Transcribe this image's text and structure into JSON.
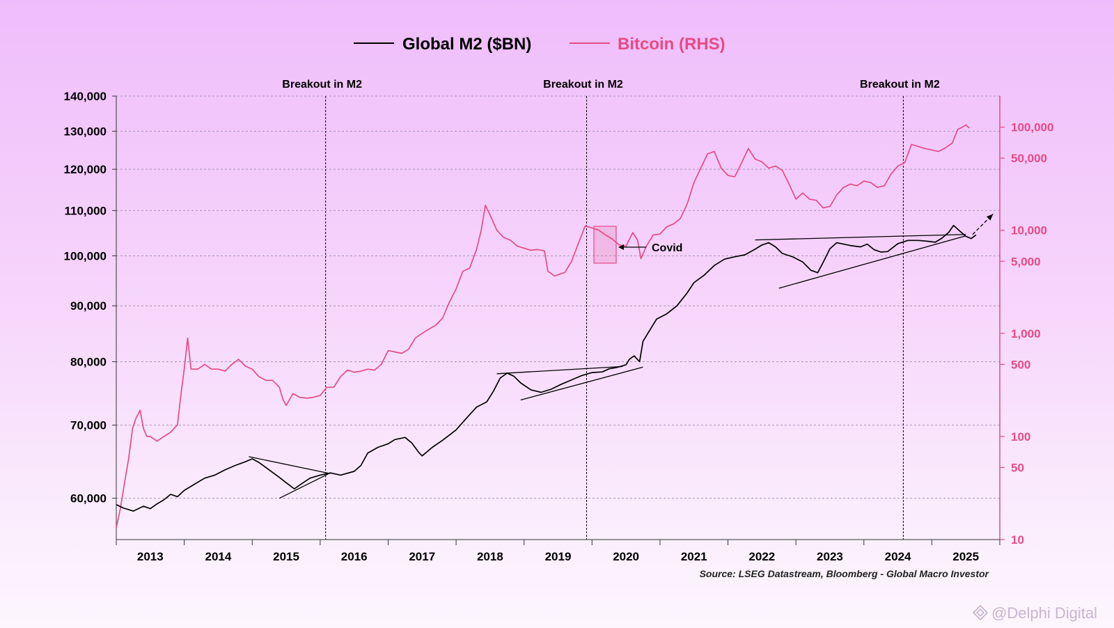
{
  "chart_data": {
    "type": "line",
    "legend": [
      {
        "name": "Global M2 ($BN)",
        "color": "#000000"
      },
      {
        "name": "Bitcoin (RHS)",
        "color": "#e64b85"
      }
    ],
    "x_range": [
      2012.5,
      2025.5
    ],
    "x_ticks": [
      "2013",
      "2014",
      "2015",
      "2016",
      "2017",
      "2018",
      "2019",
      "2020",
      "2021",
      "2022",
      "2023",
      "2024",
      "2025"
    ],
    "y_left": {
      "scale": "log",
      "range": [
        55000,
        140000
      ],
      "ticks": [
        60000,
        70000,
        80000,
        90000,
        100000,
        110000,
        120000,
        130000,
        140000
      ],
      "tick_labels": [
        "60,000",
        "70,000",
        "80,000",
        "90,000",
        "100,000",
        "110,000",
        "120,000",
        "130,000",
        "140,000"
      ]
    },
    "y_right": {
      "scale": "log",
      "range": [
        10,
        200000
      ],
      "ticks": [
        10,
        50,
        100,
        500,
        1000,
        5000,
        10000,
        50000,
        100000
      ],
      "tick_labels": [
        "10",
        "50",
        "100",
        "500",
        "1,000",
        "5,000",
        "10,000",
        "50,000",
        "100,000"
      ]
    },
    "breakout_lines": [
      {
        "x": 2015.58,
        "label": "Breakout in M2"
      },
      {
        "x": 2019.42,
        "label": "Breakout in M2"
      },
      {
        "x": 2024.08,
        "label": "Breakout in M2"
      }
    ],
    "annotation": {
      "label": "Covid",
      "x": 2020.2
    },
    "source": "Source: LSEG Datastream, Bloomberg - Global Macro Investor",
    "watermark": "@Delphi Digital",
    "series": [
      {
        "name": "Global M2 ($BN)",
        "axis": "left",
        "color": "#000000",
        "points": [
          [
            2012.5,
            59200
          ],
          [
            2012.6,
            58800
          ],
          [
            2012.75,
            58400
          ],
          [
            2012.9,
            59000
          ],
          [
            2013.0,
            58700
          ],
          [
            2013.1,
            59300
          ],
          [
            2013.2,
            59800
          ],
          [
            2013.3,
            60500
          ],
          [
            2013.4,
            60200
          ],
          [
            2013.5,
            61000
          ],
          [
            2013.65,
            61800
          ],
          [
            2013.8,
            62600
          ],
          [
            2013.95,
            63000
          ],
          [
            2014.1,
            63700
          ],
          [
            2014.25,
            64300
          ],
          [
            2014.4,
            64800
          ],
          [
            2014.5,
            65200
          ],
          [
            2014.6,
            64700
          ],
          [
            2014.75,
            63700
          ],
          [
            2014.9,
            62700
          ],
          [
            2015.0,
            62000
          ],
          [
            2015.12,
            61200
          ],
          [
            2015.2,
            61700
          ],
          [
            2015.35,
            62600
          ],
          [
            2015.5,
            63000
          ],
          [
            2015.65,
            63300
          ],
          [
            2015.8,
            63000
          ],
          [
            2016.0,
            63500
          ],
          [
            2016.1,
            64300
          ],
          [
            2016.2,
            66000
          ],
          [
            2016.35,
            66800
          ],
          [
            2016.5,
            67300
          ],
          [
            2016.6,
            67900
          ],
          [
            2016.75,
            68200
          ],
          [
            2016.85,
            67400
          ],
          [
            2016.95,
            66100
          ],
          [
            2017.0,
            65600
          ],
          [
            2017.15,
            66800
          ],
          [
            2017.3,
            67800
          ],
          [
            2017.5,
            69300
          ],
          [
            2017.65,
            71000
          ],
          [
            2017.8,
            72700
          ],
          [
            2017.95,
            73500
          ],
          [
            2018.05,
            75200
          ],
          [
            2018.15,
            77300
          ],
          [
            2018.25,
            78100
          ],
          [
            2018.35,
            77600
          ],
          [
            2018.45,
            76500
          ],
          [
            2018.6,
            75400
          ],
          [
            2018.75,
            75000
          ],
          [
            2018.9,
            75500
          ],
          [
            2019.05,
            76300
          ],
          [
            2019.2,
            77000
          ],
          [
            2019.35,
            77700
          ],
          [
            2019.5,
            78200
          ],
          [
            2019.65,
            78300
          ],
          [
            2019.75,
            78800
          ],
          [
            2019.85,
            79000
          ],
          [
            2019.95,
            79300
          ],
          [
            2020.0,
            79500
          ],
          [
            2020.05,
            80400
          ],
          [
            2020.12,
            81000
          ],
          [
            2020.2,
            80000
          ],
          [
            2020.25,
            83500
          ],
          [
            2020.35,
            85500
          ],
          [
            2020.45,
            87500
          ],
          [
            2020.6,
            88500
          ],
          [
            2020.75,
            90000
          ],
          [
            2020.9,
            92500
          ],
          [
            2021.0,
            94500
          ],
          [
            2021.15,
            96000
          ],
          [
            2021.3,
            98000
          ],
          [
            2021.45,
            99300
          ],
          [
            2021.6,
            99800
          ],
          [
            2021.75,
            100200
          ],
          [
            2021.9,
            101400
          ],
          [
            2022.0,
            102300
          ],
          [
            2022.1,
            102800
          ],
          [
            2022.2,
            101900
          ],
          [
            2022.3,
            100500
          ],
          [
            2022.45,
            99800
          ],
          [
            2022.6,
            98700
          ],
          [
            2022.72,
            97000
          ],
          [
            2022.82,
            96500
          ],
          [
            2022.9,
            98600
          ],
          [
            2023.0,
            101500
          ],
          [
            2023.1,
            102800
          ],
          [
            2023.2,
            102500
          ],
          [
            2023.3,
            102200
          ],
          [
            2023.45,
            101900
          ],
          [
            2023.55,
            102500
          ],
          [
            2023.65,
            101300
          ],
          [
            2023.75,
            100800
          ],
          [
            2023.85,
            100900
          ],
          [
            2024.0,
            102600
          ],
          [
            2024.15,
            103300
          ],
          [
            2024.3,
            103300
          ],
          [
            2024.45,
            103100
          ],
          [
            2024.55,
            102900
          ],
          [
            2024.65,
            103800
          ],
          [
            2024.75,
            105100
          ],
          [
            2024.82,
            106600
          ],
          [
            2024.9,
            105500
          ],
          [
            2025.0,
            104200
          ],
          [
            2025.08,
            103700
          ],
          [
            2025.15,
            104500
          ]
        ]
      },
      {
        "name": "Bitcoin (RHS)",
        "axis": "right",
        "color": "#e64b85",
        "points": [
          [
            2012.5,
            13
          ],
          [
            2012.56,
            20
          ],
          [
            2012.62,
            35
          ],
          [
            2012.68,
            60
          ],
          [
            2012.74,
            120
          ],
          [
            2012.79,
            150
          ],
          [
            2012.85,
            180
          ],
          [
            2012.9,
            120
          ],
          [
            2012.95,
            100
          ],
          [
            2013.0,
            100
          ],
          [
            2013.1,
            90
          ],
          [
            2013.2,
            100
          ],
          [
            2013.3,
            110
          ],
          [
            2013.4,
            130
          ],
          [
            2013.45,
            250
          ],
          [
            2013.5,
            450
          ],
          [
            2013.55,
            900
          ],
          [
            2013.6,
            450
          ],
          [
            2013.7,
            450
          ],
          [
            2013.8,
            500
          ],
          [
            2013.9,
            450
          ],
          [
            2014.0,
            450
          ],
          [
            2014.1,
            430
          ],
          [
            2014.2,
            500
          ],
          [
            2014.3,
            560
          ],
          [
            2014.4,
            480
          ],
          [
            2014.5,
            450
          ],
          [
            2014.6,
            380
          ],
          [
            2014.7,
            350
          ],
          [
            2014.8,
            350
          ],
          [
            2014.9,
            300
          ],
          [
            2014.95,
            230
          ],
          [
            2015.0,
            200
          ],
          [
            2015.1,
            260
          ],
          [
            2015.2,
            240
          ],
          [
            2015.3,
            235
          ],
          [
            2015.4,
            240
          ],
          [
            2015.5,
            250
          ],
          [
            2015.6,
            300
          ],
          [
            2015.7,
            300
          ],
          [
            2015.8,
            380
          ],
          [
            2015.9,
            440
          ],
          [
            2016.0,
            420
          ],
          [
            2016.1,
            430
          ],
          [
            2016.2,
            450
          ],
          [
            2016.3,
            440
          ],
          [
            2016.4,
            500
          ],
          [
            2016.5,
            680
          ],
          [
            2016.6,
            660
          ],
          [
            2016.7,
            640
          ],
          [
            2016.8,
            700
          ],
          [
            2016.9,
            900
          ],
          [
            2017.0,
            1000
          ],
          [
            2017.1,
            1100
          ],
          [
            2017.2,
            1200
          ],
          [
            2017.3,
            1400
          ],
          [
            2017.4,
            2000
          ],
          [
            2017.5,
            2700
          ],
          [
            2017.6,
            4000
          ],
          [
            2017.7,
            4300
          ],
          [
            2017.8,
            6500
          ],
          [
            2017.87,
            10000
          ],
          [
            2017.93,
            17500
          ],
          [
            2018.0,
            14000
          ],
          [
            2018.1,
            10000
          ],
          [
            2018.2,
            8500
          ],
          [
            2018.3,
            8000
          ],
          [
            2018.4,
            7000
          ],
          [
            2018.5,
            6700
          ],
          [
            2018.6,
            6400
          ],
          [
            2018.7,
            6500
          ],
          [
            2018.8,
            6300
          ],
          [
            2018.85,
            4000
          ],
          [
            2018.95,
            3600
          ],
          [
            2019.0,
            3700
          ],
          [
            2019.1,
            3900
          ],
          [
            2019.2,
            5000
          ],
          [
            2019.3,
            7500
          ],
          [
            2019.4,
            11000
          ],
          [
            2019.5,
            10500
          ],
          [
            2019.6,
            10000
          ],
          [
            2019.7,
            9000
          ],
          [
            2019.8,
            8200
          ],
          [
            2019.9,
            7200
          ],
          [
            2020.0,
            7000
          ],
          [
            2020.1,
            9500
          ],
          [
            2020.17,
            8000
          ],
          [
            2020.22,
            5300
          ],
          [
            2020.3,
            7000
          ],
          [
            2020.4,
            9000
          ],
          [
            2020.5,
            9200
          ],
          [
            2020.6,
            10800
          ],
          [
            2020.7,
            11500
          ],
          [
            2020.8,
            13000
          ],
          [
            2020.9,
            18000
          ],
          [
            2021.0,
            29000
          ],
          [
            2021.1,
            40000
          ],
          [
            2021.2,
            55000
          ],
          [
            2021.3,
            58000
          ],
          [
            2021.4,
            40000
          ],
          [
            2021.5,
            34000
          ],
          [
            2021.6,
            33000
          ],
          [
            2021.7,
            45000
          ],
          [
            2021.8,
            62000
          ],
          [
            2021.9,
            49000
          ],
          [
            2022.0,
            46000
          ],
          [
            2022.1,
            40000
          ],
          [
            2022.2,
            42000
          ],
          [
            2022.3,
            38000
          ],
          [
            2022.4,
            28000
          ],
          [
            2022.5,
            20000
          ],
          [
            2022.6,
            23000
          ],
          [
            2022.7,
            20000
          ],
          [
            2022.8,
            19500
          ],
          [
            2022.9,
            16500
          ],
          [
            2023.0,
            17000
          ],
          [
            2023.1,
            22000
          ],
          [
            2023.2,
            26000
          ],
          [
            2023.3,
            28000
          ],
          [
            2023.4,
            27000
          ],
          [
            2023.5,
            30000
          ],
          [
            2023.6,
            29000
          ],
          [
            2023.7,
            26000
          ],
          [
            2023.8,
            27000
          ],
          [
            2023.9,
            35000
          ],
          [
            2024.0,
            42000
          ],
          [
            2024.1,
            45000
          ],
          [
            2024.2,
            68000
          ],
          [
            2024.3,
            65000
          ],
          [
            2024.4,
            62000
          ],
          [
            2024.5,
            60000
          ],
          [
            2024.6,
            58000
          ],
          [
            2024.7,
            63000
          ],
          [
            2024.8,
            70000
          ],
          [
            2024.88,
            95000
          ],
          [
            2024.95,
            100000
          ],
          [
            2025.0,
            105000
          ],
          [
            2025.05,
            98000
          ]
        ]
      }
    ],
    "trendlines": [
      {
        "axis": "left",
        "from": [
          2014.45,
          65500
        ],
        "to": [
          2015.65,
          63200
        ]
      },
      {
        "axis": "left",
        "from": [
          2014.9,
          60000
        ],
        "to": [
          2015.65,
          63300
        ]
      },
      {
        "axis": "left",
        "from": [
          2018.1,
          78000
        ],
        "to": [
          2019.95,
          79200
        ]
      },
      {
        "axis": "left",
        "from": [
          2018.45,
          73800
        ],
        "to": [
          2020.25,
          79100
        ]
      },
      {
        "axis": "left",
        "from": [
          2021.9,
          103400
        ],
        "to": [
          2025.0,
          104600
        ]
      },
      {
        "axis": "left",
        "from": [
          2022.25,
          93400
        ],
        "to": [
          2025.0,
          104300
        ]
      }
    ],
    "arrow": {
      "axis": "left",
      "from": [
        2025.1,
        104600
      ],
      "to": [
        2025.4,
        109200
      ]
    }
  }
}
